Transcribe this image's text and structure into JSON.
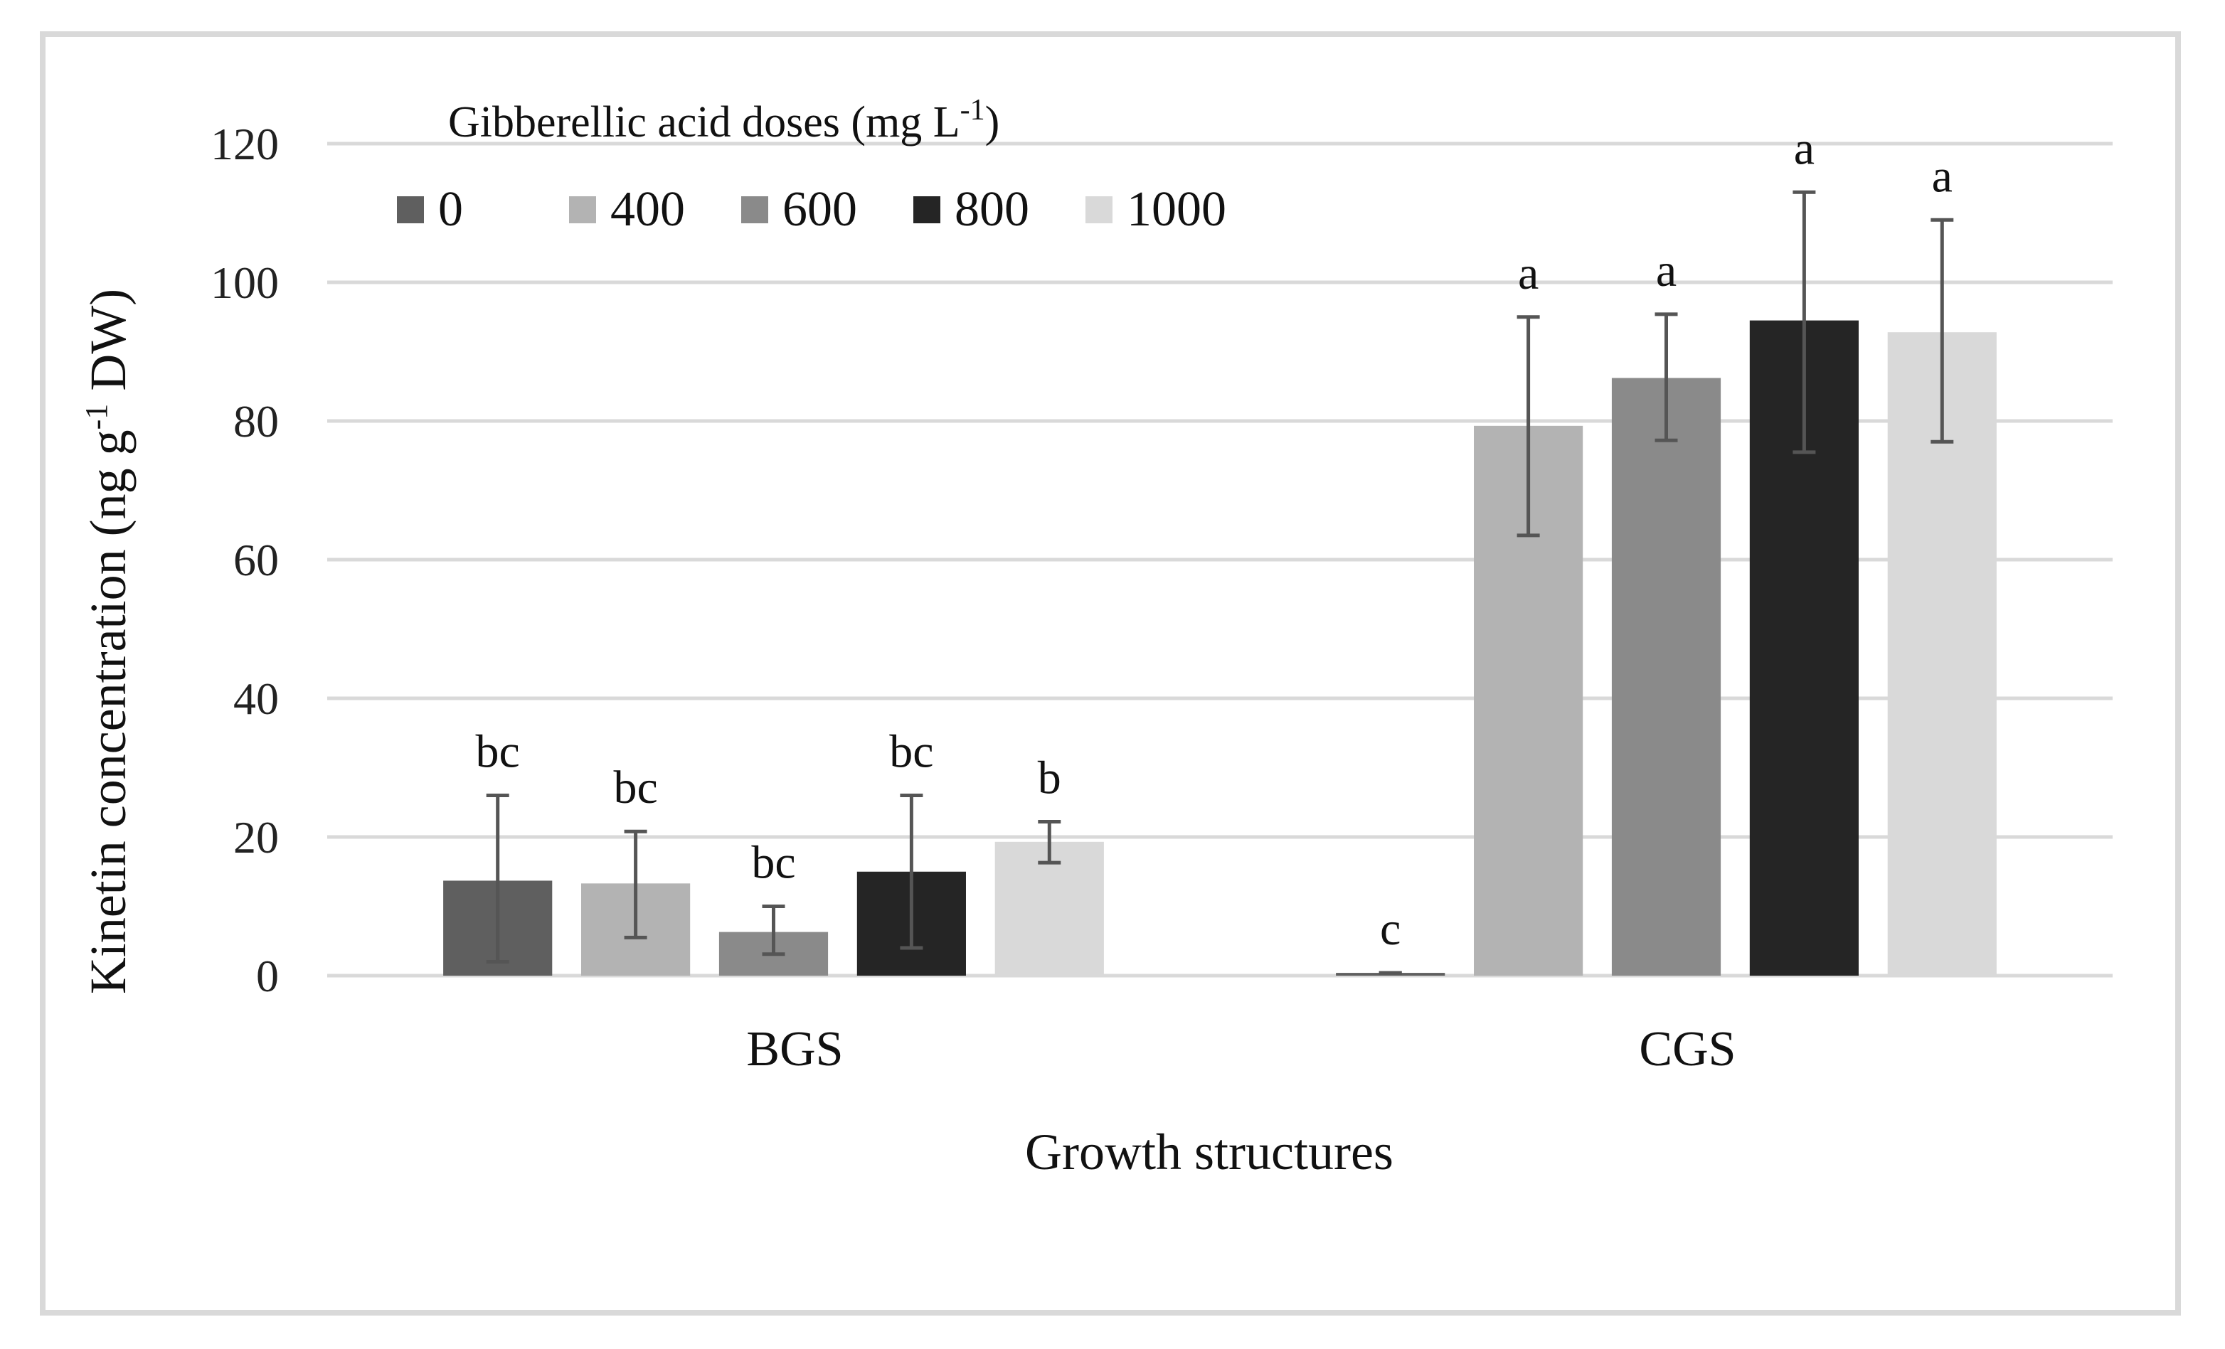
{
  "chart_data": {
    "type": "bar",
    "title": "",
    "xlabel": "Growth structures",
    "ylabel_main": "Kinetin concentration (ng g",
    "ylabel_sup": "-1",
    "ylabel_end": " DW)",
    "ylim": [
      0,
      120
    ],
    "yticks": [
      0,
      20,
      40,
      60,
      80,
      100,
      120
    ],
    "grid": true,
    "legend_title_main": "Gibberellic  acid doses (mg L",
    "legend_title_sup": "-1",
    "legend_title_end": ")",
    "legend_placement": "top-left",
    "categories": [
      "BGS",
      "CGS"
    ],
    "series": [
      {
        "name": "0",
        "color": "#5f5f5f",
        "values": [
          13.7,
          0.4
        ],
        "err_low": [
          2,
          0.4
        ],
        "err_high": [
          26,
          0.4
        ],
        "labels": [
          "bc",
          "c"
        ]
      },
      {
        "name": "400",
        "color": "#b3b3b3",
        "values": [
          13.3,
          79.3
        ],
        "err_low": [
          5.5,
          63.5
        ],
        "err_high": [
          20.8,
          95
        ],
        "labels": [
          "bc",
          "a"
        ]
      },
      {
        "name": "600",
        "color": "#8a8a8a",
        "values": [
          6.3,
          86.2
        ],
        "err_low": [
          3.1,
          77.2
        ],
        "err_high": [
          10,
          95.4
        ],
        "labels": [
          "bc",
          "a"
        ]
      },
      {
        "name": "800",
        "color": "#252525",
        "values": [
          15.0,
          94.5
        ],
        "err_low": [
          4,
          75.5
        ],
        "err_high": [
          26,
          113
        ],
        "labels": [
          "bc",
          "a"
        ]
      },
      {
        "name": "1000",
        "color": "#d9d9d9",
        "values": [
          19.3,
          92.8
        ],
        "err_low": [
          16.3,
          77
        ],
        "err_high": [
          22.2,
          109
        ],
        "labels": [
          "b",
          "a"
        ]
      }
    ]
  }
}
